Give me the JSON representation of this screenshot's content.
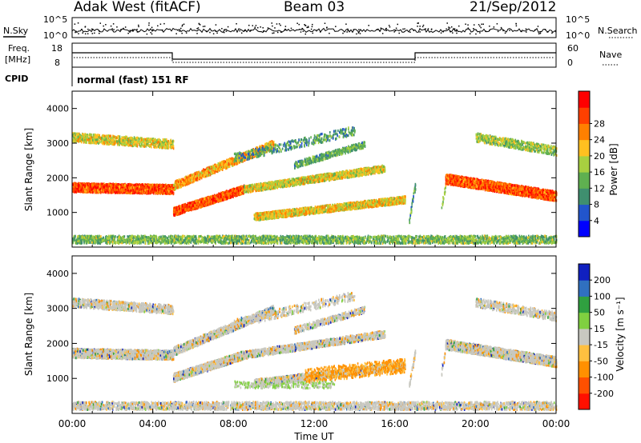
{
  "header": {
    "station": "Adak West (fitACF)",
    "beam": "Beam 03",
    "date": "21/Sep/2012"
  },
  "noise_panel": {
    "left_label": "N.Sky",
    "right_label": "N.Search",
    "left_ticks": [
      "10^5",
      "10^0"
    ],
    "right_ticks": [
      "10^5",
      "10^0"
    ]
  },
  "freq_panel": {
    "left_label_1": "Freq.",
    "left_label_2": "[MHz]",
    "right_label": "Nave",
    "left_ticks": [
      "18",
      "8"
    ],
    "right_ticks": [
      "60",
      "0"
    ]
  },
  "cpid": {
    "label": "CPID",
    "text": "normal (fast) 151 RF"
  },
  "colors": {
    "power_scale": [
      "#0000ff",
      "#2255cc",
      "#3f8f6f",
      "#5fb050",
      "#a8d040",
      "#ffc020",
      "#ff8000",
      "#ff4000",
      "#ff0000"
    ],
    "velocity_scale": [
      "#1020c0",
      "#3070c0",
      "#30a040",
      "#80d040",
      "#c8c8c0",
      "#ffc040",
      "#ff9000",
      "#ff5000",
      "#ff1000"
    ]
  },
  "chart_data": [
    {
      "type": "heatmap",
      "name": "power",
      "xlabel": "",
      "ylabel": "Slant Range [km]",
      "colorbar_label": "Power [dB]",
      "colorbar_ticks": [
        "4",
        "8",
        "12",
        "16",
        "20",
        "24",
        "28"
      ],
      "xlim": [
        0,
        24
      ],
      "ylim": [
        0,
        4500
      ],
      "y_ticks": [
        "1000",
        "2000",
        "3000",
        "4000"
      ],
      "x_ticks": [
        "00:00",
        "04:00",
        "08:00",
        "12:00",
        "16:00",
        "20:00",
        "00:00"
      ],
      "grid": false
    },
    {
      "type": "heatmap",
      "name": "velocity",
      "xlabel": "Time UT",
      "ylabel": "Slant Range [km]",
      "colorbar_label": "Velocity [m s⁻¹]",
      "colorbar_ticks": [
        "200",
        "100",
        "50",
        "15",
        "-15",
        "-50",
        "-100",
        "-200"
      ],
      "xlim": [
        0,
        24
      ],
      "ylim": [
        0,
        4500
      ],
      "y_ticks": [
        "1000",
        "2000",
        "3000",
        "4000"
      ],
      "x_ticks": [
        "00:00",
        "04:00",
        "08:00",
        "12:00",
        "16:00",
        "20:00",
        "00:00"
      ],
      "grid": false
    }
  ]
}
